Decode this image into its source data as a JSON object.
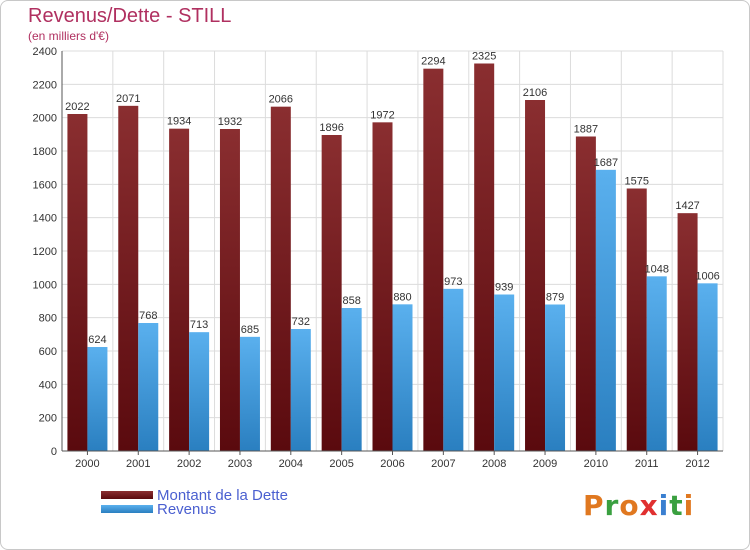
{
  "title": "Revenus/Dette - STILL",
  "subtitle": "(en milliers d'€)",
  "colors": {
    "dette_dark": "#5a0a0e",
    "dette_light": "#8a2e30",
    "revenus_dark": "#2a7fc0",
    "revenus_light": "#5ab0ee",
    "grid": "#d8d8d8",
    "axis_text": "#333333"
  },
  "legend": {
    "dette_label": "Montant de la Dette",
    "revenus_label": "Revenus"
  },
  "logo": {
    "letters": [
      "P",
      "r",
      "o",
      "x",
      "i",
      "t",
      "i"
    ],
    "colors": [
      "#e07820",
      "#3aa040",
      "#e07820",
      "#e03030",
      "#3a7fd0",
      "#3aa040",
      "#e07820"
    ]
  },
  "chart_data": {
    "type": "bar",
    "title": "Revenus/Dette - STILL",
    "subtitle": "(en milliers d'€)",
    "categories": [
      "2000",
      "2001",
      "2002",
      "2003",
      "2004",
      "2005",
      "2006",
      "2007",
      "2008",
      "2009",
      "2010",
      "2011",
      "2012"
    ],
    "series": [
      {
        "name": "Montant de la Dette",
        "values": [
          2022,
          2071,
          1934,
          1932,
          2066,
          1896,
          1972,
          2294,
          2325,
          2106,
          1887,
          1575,
          1427
        ]
      },
      {
        "name": "Revenus",
        "values": [
          624,
          768,
          713,
          685,
          732,
          858,
          880,
          973,
          939,
          879,
          1687,
          1048,
          1006
        ]
      }
    ],
    "ylim": [
      0,
      2400
    ],
    "yticks": [
      0,
      200,
      400,
      600,
      800,
      1000,
      1200,
      1400,
      1600,
      1800,
      2000,
      2200,
      2400
    ],
    "grid": true,
    "legend_position": "bottom-left"
  }
}
